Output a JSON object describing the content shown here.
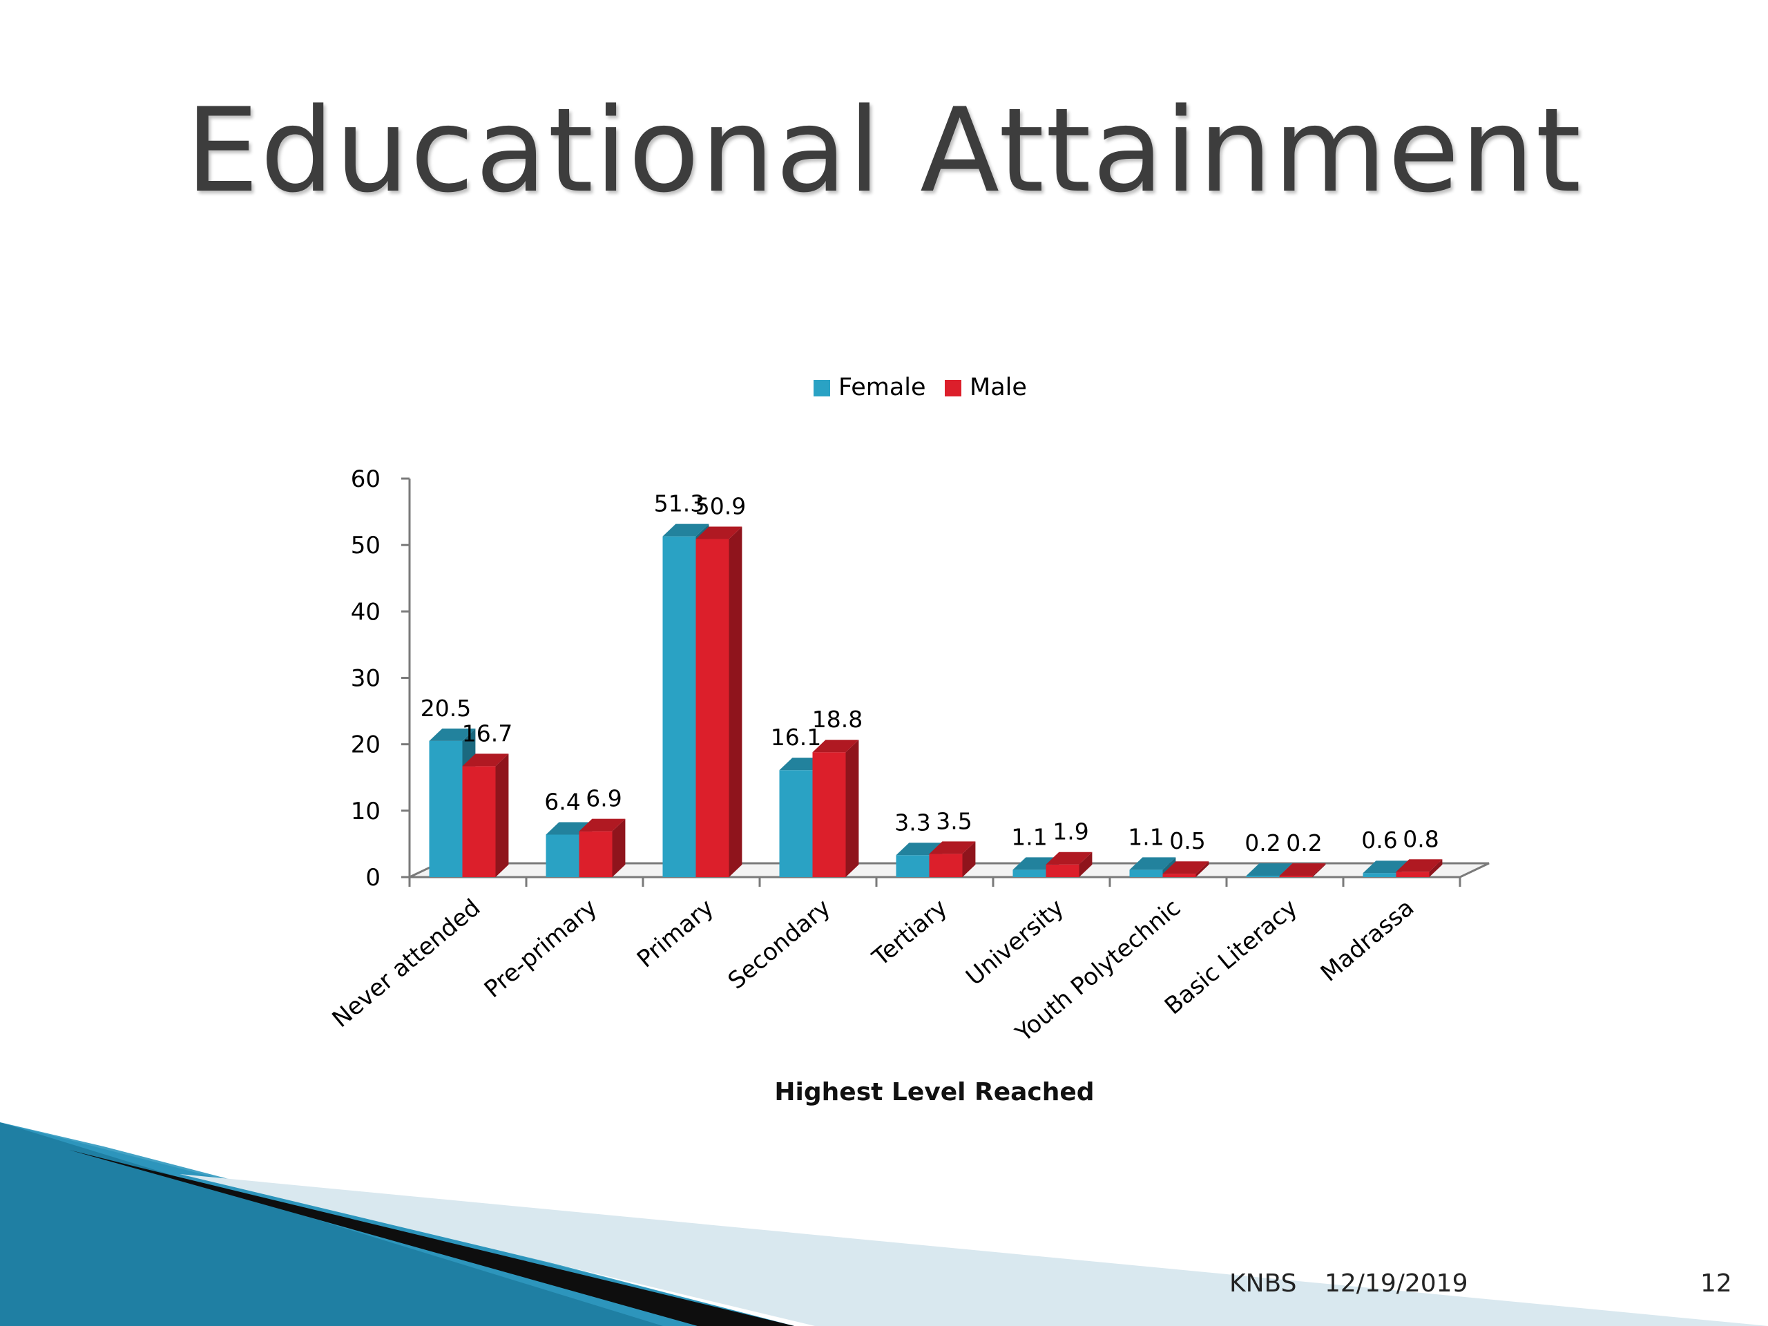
{
  "slide": {
    "title": "Educational Attainment",
    "footer_org": "KNBS",
    "footer_date": "12/19/2019",
    "page_number": "12"
  },
  "colors": {
    "female": "#2aa2c4",
    "male": "#dc1f2b",
    "title": "#3d3d3d"
  },
  "chart_data": {
    "type": "bar",
    "title": "",
    "xlabel": "Highest Level Reached",
    "ylabel": "",
    "ylim": [
      0,
      60
    ],
    "yticks": [
      0,
      10,
      20,
      30,
      40,
      50,
      60
    ],
    "grid": false,
    "legend_position": "top-center",
    "three_d": true,
    "categories": [
      "Never attended",
      "Pre-primary",
      "Primary",
      "Secondary",
      "Tertiary",
      "University",
      "Youth Polytechnic",
      "Basic Literacy",
      "Madrassa"
    ],
    "series": [
      {
        "name": "Female",
        "values": [
          20.5,
          6.4,
          51.3,
          16.1,
          3.3,
          1.1,
          1.1,
          0.2,
          0.6
        ]
      },
      {
        "name": "Male",
        "values": [
          16.7,
          6.9,
          50.9,
          18.8,
          3.5,
          1.9,
          0.5,
          0.2,
          0.8
        ]
      }
    ]
  }
}
